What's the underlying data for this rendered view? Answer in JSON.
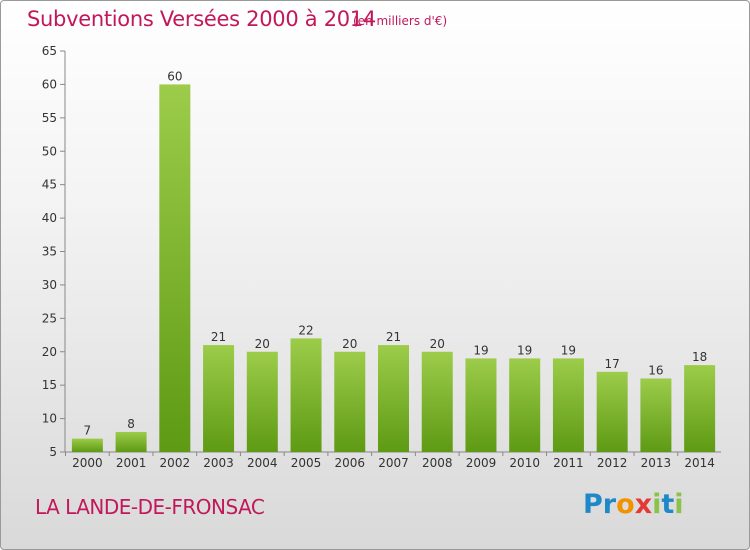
{
  "header": {
    "title": "Subventions Versées 2000 à 2014",
    "subtitle": "(en milliers d'€)"
  },
  "footer": {
    "commune": "LA LANDE-DE-FRONSAC",
    "logo_letters": [
      {
        "char": "P",
        "color": "#1e88c8"
      },
      {
        "char": "r",
        "color": "#1e88c8"
      },
      {
        "char": "o",
        "color": "#f39200"
      },
      {
        "char": "x",
        "color": "#e53935"
      },
      {
        "char": "i",
        "color": "#8bc34a"
      },
      {
        "char": "t",
        "color": "#1e88c8"
      },
      {
        "char": "i",
        "color": "#8bc34a"
      }
    ]
  },
  "chart_data": {
    "type": "bar",
    "title": "Subventions Versées 2000 à 2014",
    "subtitle": "(en milliers d'€)",
    "categories": [
      "2000",
      "2001",
      "2002",
      "2003",
      "2004",
      "2005",
      "2006",
      "2007",
      "2008",
      "2009",
      "2010",
      "2011",
      "2012",
      "2013",
      "2014"
    ],
    "values": [
      7,
      8,
      60,
      21,
      20,
      22,
      20,
      21,
      20,
      19,
      19,
      19,
      17,
      16,
      18
    ],
    "data_labels": [
      "7",
      "8",
      "60",
      "21",
      "20",
      "22",
      "20",
      "21",
      "20",
      "19",
      "19",
      "19",
      "17",
      "16",
      "18"
    ],
    "ylim": [
      5,
      65
    ],
    "yticks": [
      5,
      10,
      15,
      20,
      25,
      30,
      35,
      40,
      45,
      50,
      55,
      60,
      65
    ],
    "ytick_labels": [
      "5",
      "10",
      "15",
      "20",
      "25",
      "30",
      "35",
      "40",
      "45",
      "50",
      "55",
      "60",
      "65"
    ],
    "grid": false,
    "colors": {
      "bar_light": "#9ccc4a",
      "bar_dark": "#5e9a14",
      "axis": "#888888",
      "text": "#333333",
      "accent": "#c2185b"
    }
  }
}
